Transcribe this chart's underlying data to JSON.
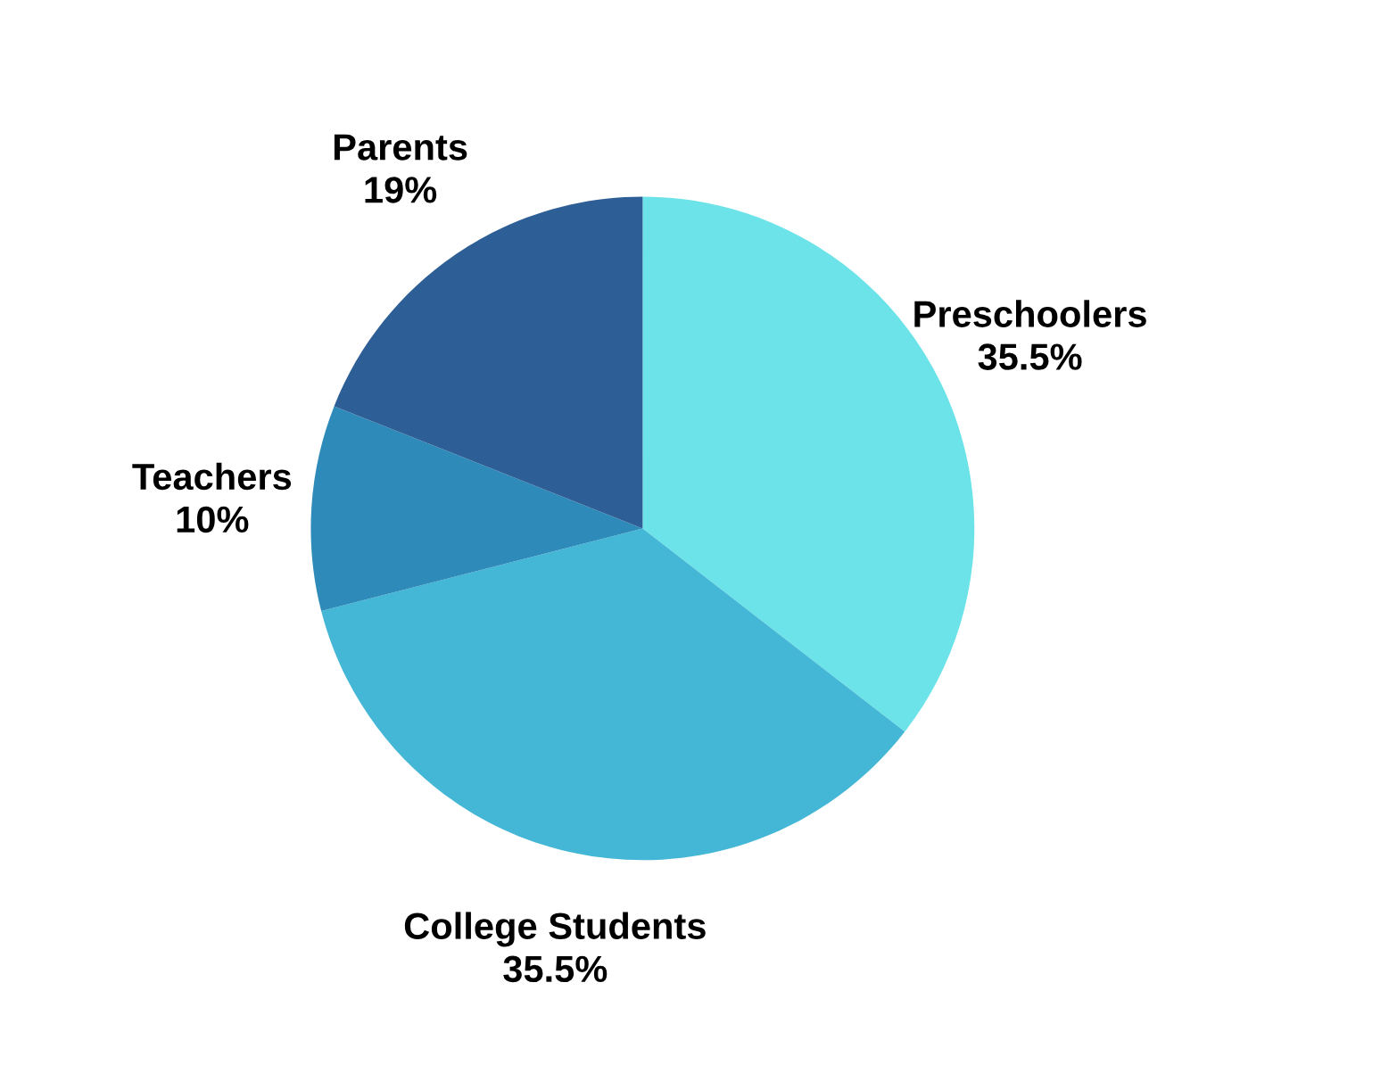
{
  "chart_data": {
    "type": "pie",
    "categories": [
      "Preschoolers",
      "College Students",
      "Teachers",
      "Parents"
    ],
    "values": [
      35.5,
      35.5,
      10,
      19
    ],
    "value_labels": [
      "35.5%",
      "35.5%",
      "10%",
      "19%"
    ],
    "colors": [
      "#6ce3e8",
      "#44b6d6",
      "#2e8ab8",
      "#2e5e96"
    ],
    "legend": false
  }
}
